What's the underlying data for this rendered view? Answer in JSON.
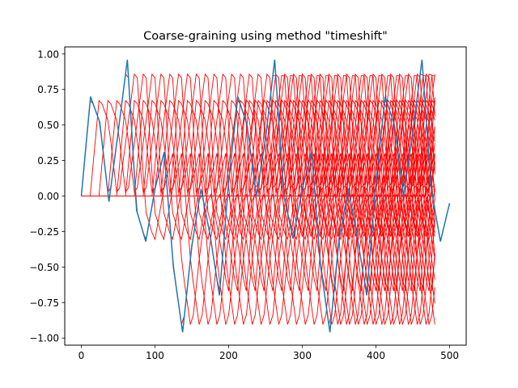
{
  "chart_data": {
    "type": "line",
    "title": "Coarse-graining using method \"timeshift\"",
    "xlabel": "",
    "ylabel": "",
    "xlim": [
      -22.5,
      522.5
    ],
    "ylim": [
      -1.05,
      1.05
    ],
    "x_ticks": [
      0,
      100,
      200,
      300,
      400,
      500
    ],
    "y_ticks": [
      -1.0,
      -0.75,
      -0.5,
      -0.25,
      0.0,
      0.25,
      0.5,
      0.75,
      1.0
    ],
    "x_tick_labels": [
      "0",
      "100",
      "200",
      "300",
      "400",
      "500"
    ],
    "y_tick_labels": [
      "−1.00",
      "−0.75",
      "−0.50",
      "−0.25",
      "0.00",
      "0.25",
      "0.50",
      "0.75",
      "1.00"
    ],
    "grid": false,
    "series": [
      {
        "color": "#1f77b4",
        "x": [
          0,
          12.5,
          25,
          37.5,
          50,
          62.5,
          75,
          87.5,
          100,
          112.5,
          125,
          137.5,
          150,
          162.5,
          175,
          187.5,
          200,
          212.5,
          225,
          237.5,
          250,
          262.5,
          275,
          287.5,
          300,
          312.5,
          325,
          337.5,
          350,
          362.5,
          375,
          387.5,
          400,
          412.5,
          425,
          437.5,
          450,
          462.5,
          475,
          487.5,
          500
        ],
        "y": [
          0.0,
          0.7,
          0.52,
          -0.04,
          0.45,
          0.96,
          -0.1,
          -0.32,
          0.05,
          0.31,
          -0.5,
          -0.96,
          -0.35,
          0.05,
          -0.28,
          -0.7,
          0.1,
          0.7,
          0.5,
          0.0,
          0.4,
          0.96,
          0.0,
          -0.3,
          0.05,
          0.31,
          -0.5,
          -0.96,
          -0.3,
          0.05,
          -0.3,
          -0.7,
          0.1,
          0.7,
          0.5,
          0.0,
          0.45,
          0.96,
          0.05,
          -0.32,
          -0.05
        ]
      }
    ],
    "shift_lines": {
      "color": "#ff0000",
      "count": 40,
      "x_start": 0,
      "x_end": 480,
      "tau": 12
    }
  }
}
